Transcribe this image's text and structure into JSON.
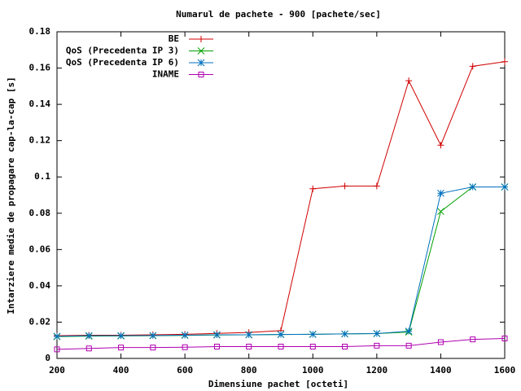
{
  "chart_data": {
    "type": "line",
    "title": "Numarul de pachete - 900 [pachete/sec]",
    "x_label": "Dimensiune pachet [octeti]",
    "y_label": "Intarziere medie de propagare cap-la-cap [s]",
    "x": [
      200,
      300,
      400,
      500,
      600,
      700,
      800,
      900,
      1000,
      1100,
      1200,
      1300,
      1400,
      1500,
      1600
    ],
    "series": [
      {
        "name": "BE",
        "color": "#d00000",
        "marker": "plus",
        "values": [
          0.0125,
          0.0128,
          0.0128,
          0.013,
          0.0133,
          0.0138,
          0.0143,
          0.0153,
          0.0935,
          0.095,
          0.095,
          0.153,
          0.1175,
          0.161,
          0.1635
        ]
      },
      {
        "name": "QoS (Precedenta IP 3)",
        "color": "#00a000",
        "marker": "cross",
        "values": [
          0.012,
          0.0123,
          0.0124,
          0.0125,
          0.0127,
          0.0129,
          0.013,
          0.0132,
          0.0133,
          0.0135,
          0.0137,
          0.0145,
          0.081,
          0.0945,
          0.0945
        ]
      },
      {
        "name": "QoS (Precedenta IP 6)",
        "color": "#0070c0",
        "marker": "star",
        "values": [
          0.0122,
          0.0125,
          0.0125,
          0.0126,
          0.0128,
          0.013,
          0.013,
          0.0132,
          0.0133,
          0.0135,
          0.0137,
          0.015,
          0.091,
          0.0945,
          0.0945
        ]
      },
      {
        "name": "INAME",
        "color": "#b000b0",
        "marker": "square",
        "values": [
          0.005,
          0.0055,
          0.006,
          0.006,
          0.0062,
          0.0065,
          0.0065,
          0.0065,
          0.0065,
          0.0065,
          0.007,
          0.007,
          0.009,
          0.0105,
          0.011
        ]
      }
    ],
    "xlim": [
      200,
      1600
    ],
    "xticks": [
      200,
      400,
      600,
      800,
      1000,
      1200,
      1400,
      1600
    ],
    "ylim": [
      0,
      0.18
    ],
    "yticks": [
      0,
      0.02,
      0.04,
      0.06,
      0.08,
      0.1,
      0.12,
      0.14,
      0.16,
      0.18
    ],
    "legend": "top-right"
  }
}
